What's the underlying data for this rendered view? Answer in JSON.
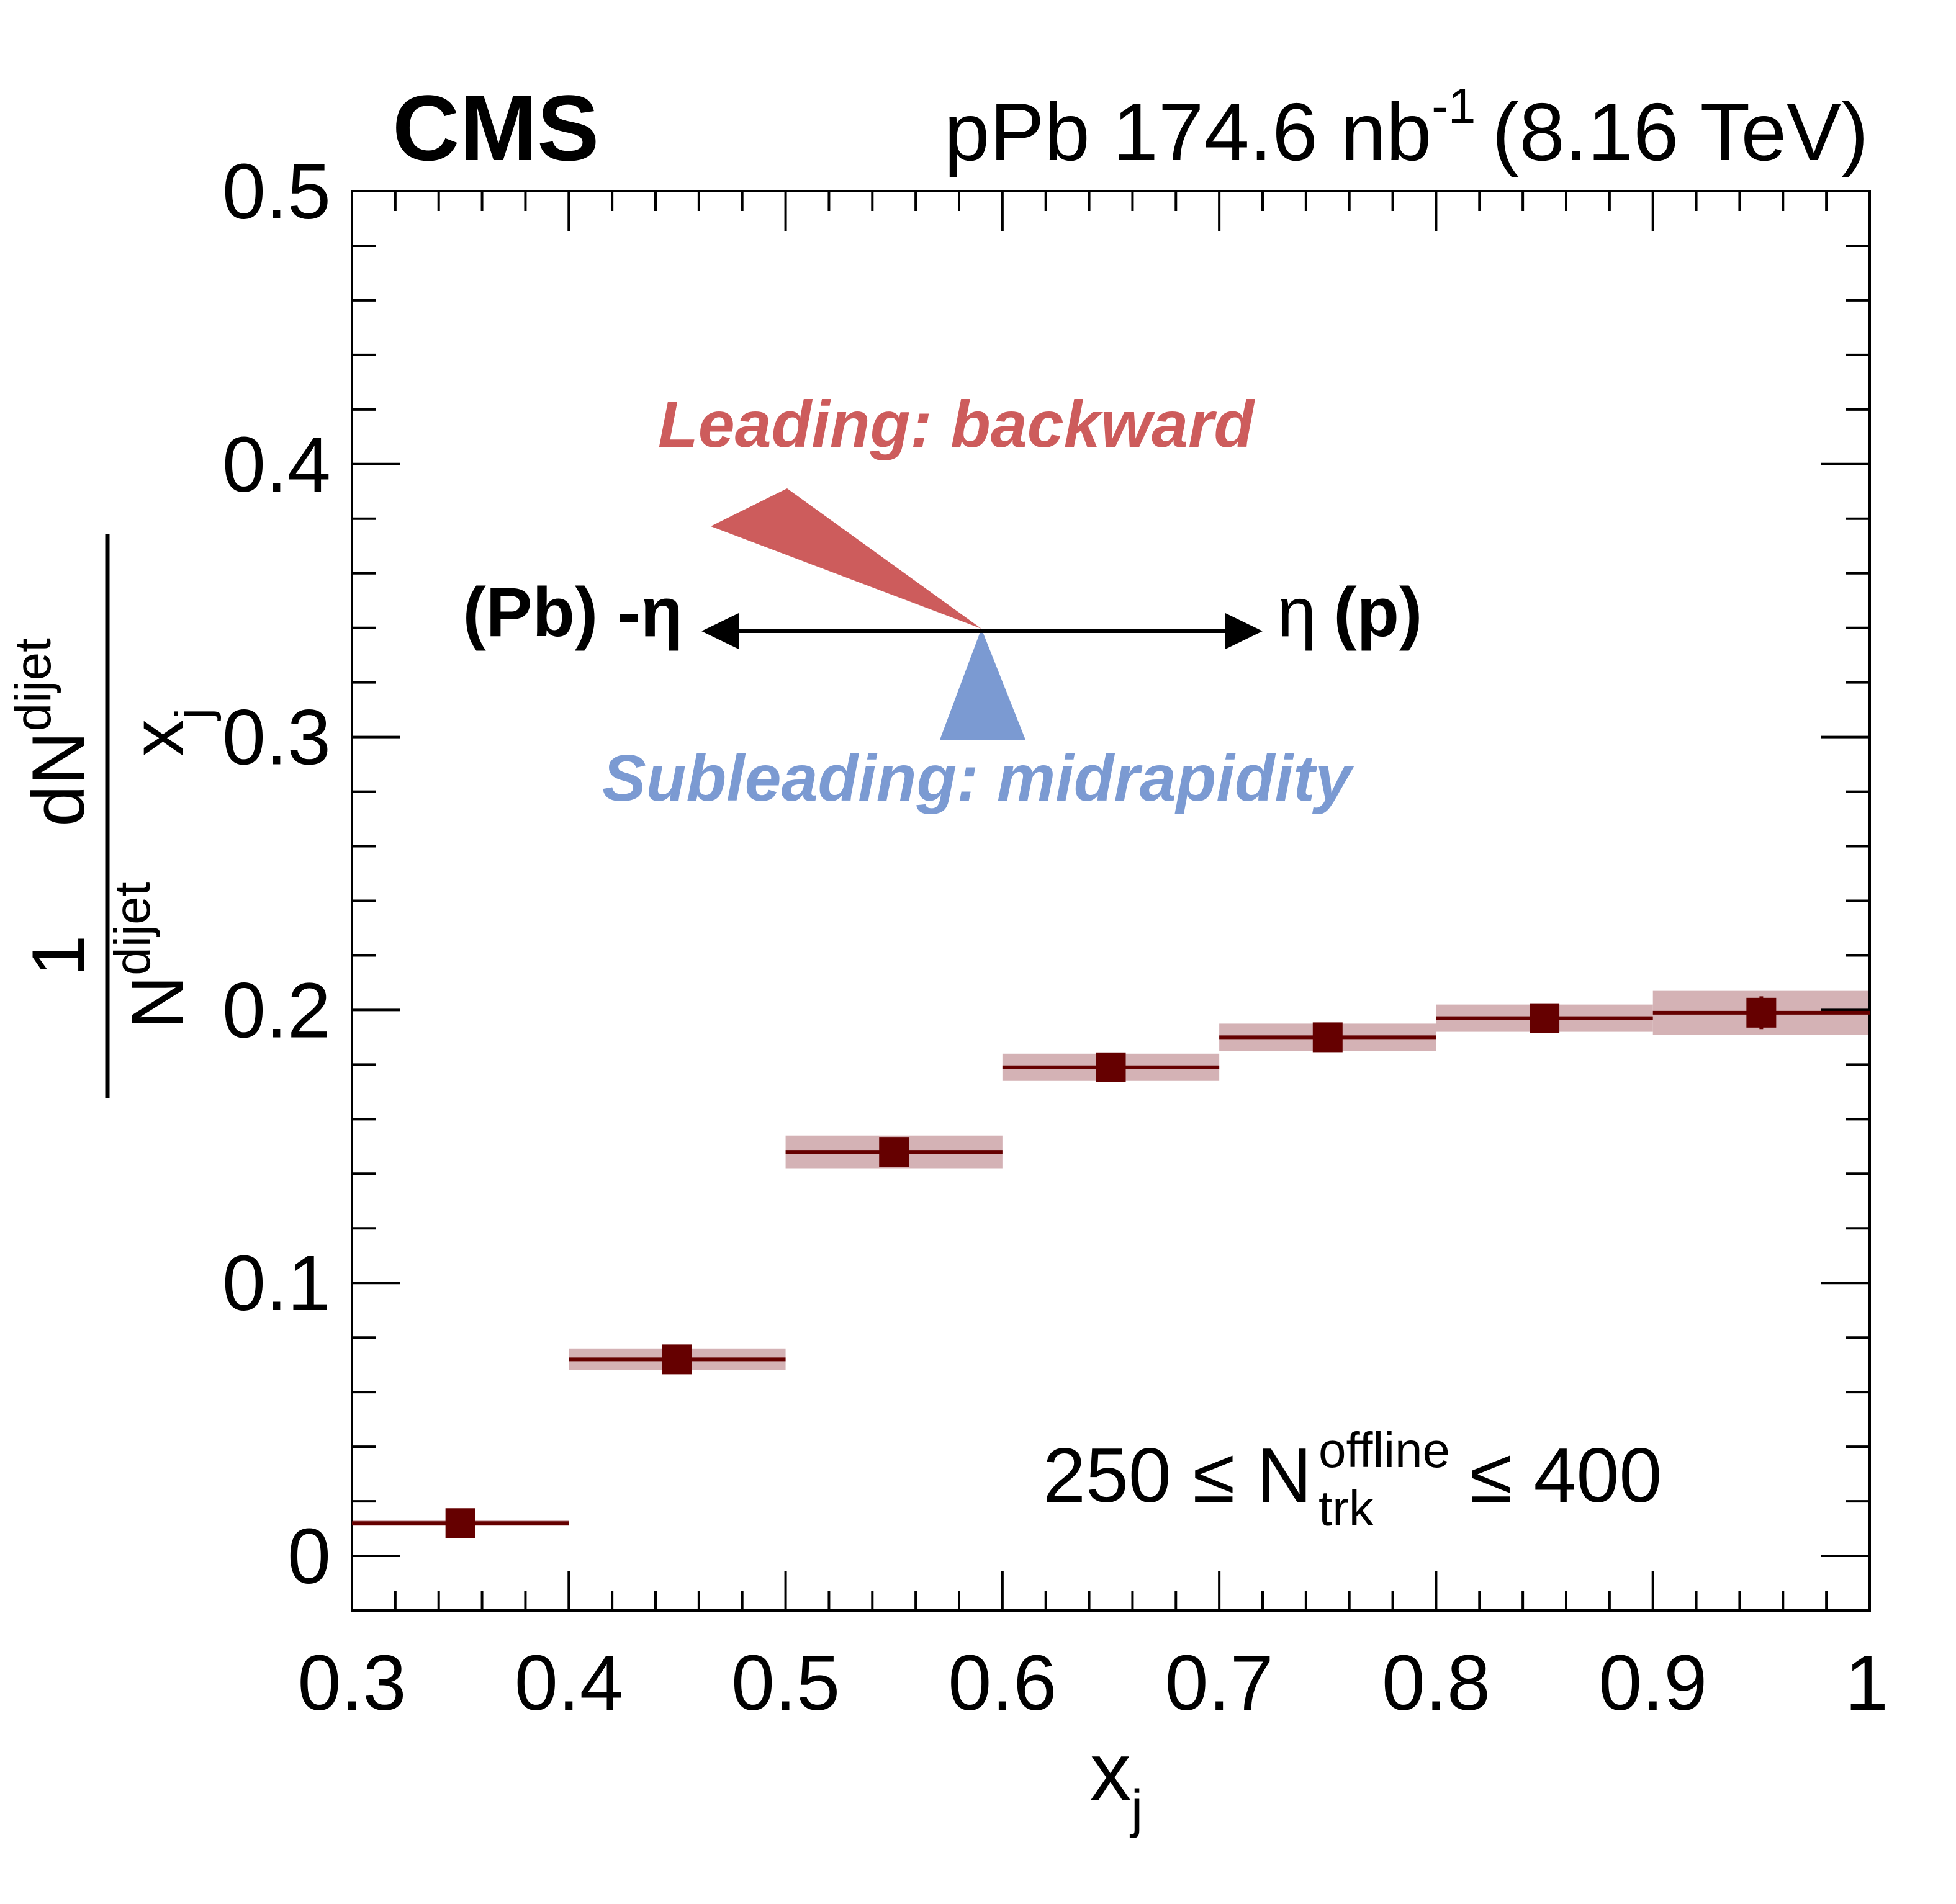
{
  "header": {
    "experiment": "CMS",
    "lumi_prefix": "pPb 174.6 nb",
    "lumi_exp": "-1",
    "energy": "(8.16 TeV)"
  },
  "annotations": {
    "leading": "Leading: backward",
    "subleading": "Subleading: midrapidity",
    "eta_left": "(Pb) -η",
    "eta_right_sym": "η",
    "eta_right_label": "(p)",
    "selection_lo": "250 ≤ N",
    "selection_sup": "offline",
    "selection_sub": "trk",
    "selection_hi": "≤ 400",
    "colors": {
      "leading": "#cd5c5c",
      "subleading": "#7b9ad2",
      "arrow": "#000000"
    }
  },
  "axes": {
    "x_label_main": "x",
    "x_label_sub": "j",
    "y_label_frac1_num": "1",
    "y_label_frac1_den_main": "N",
    "y_label_frac1_den_sub": "dijet",
    "y_label_frac2_num_main": "dN",
    "y_label_frac2_num_sub": "dijet",
    "y_label_frac2_den_main": "x",
    "y_label_frac2_den_sub": "j"
  },
  "chart_data": {
    "type": "scatter",
    "xlim": [
      0.3,
      1.0
    ],
    "ylim": [
      -0.02,
      0.5
    ],
    "x_ticks": [
      "0.3",
      "0.4",
      "0.5",
      "0.6",
      "0.7",
      "0.8",
      "0.9",
      "1"
    ],
    "y_ticks": [
      "0",
      "0.1",
      "0.2",
      "0.3",
      "0.4",
      "0.5"
    ],
    "x_tick_values": [
      0.3,
      0.4,
      0.5,
      0.6,
      0.7,
      0.8,
      0.9,
      1.0
    ],
    "y_tick_values": [
      0,
      0.1,
      0.2,
      0.3,
      0.4,
      0.5
    ],
    "marker_color": "#650000",
    "syst_color": "#d4b2b5",
    "series": [
      {
        "points": [
          {
            "xlo": 0.3,
            "xhi": 0.4,
            "x": 0.35,
            "y": 0.012,
            "stat": 0.001,
            "syst": 0.001
          },
          {
            "xlo": 0.4,
            "xhi": 0.5,
            "x": 0.45,
            "y": 0.072,
            "stat": 0.002,
            "syst": 0.004
          },
          {
            "xlo": 0.5,
            "xhi": 0.6,
            "x": 0.55,
            "y": 0.148,
            "stat": 0.002,
            "syst": 0.006
          },
          {
            "xlo": 0.6,
            "xhi": 0.7,
            "x": 0.65,
            "y": 0.179,
            "stat": 0.003,
            "syst": 0.005
          },
          {
            "xlo": 0.7,
            "xhi": 0.8,
            "x": 0.75,
            "y": 0.19,
            "stat": 0.003,
            "syst": 0.005
          },
          {
            "xlo": 0.8,
            "xhi": 0.9,
            "x": 0.85,
            "y": 0.197,
            "stat": 0.003,
            "syst": 0.005
          },
          {
            "xlo": 0.9,
            "xhi": 1.0,
            "x": 0.95,
            "y": 0.199,
            "stat": 0.006,
            "syst": 0.008
          }
        ]
      }
    ]
  }
}
